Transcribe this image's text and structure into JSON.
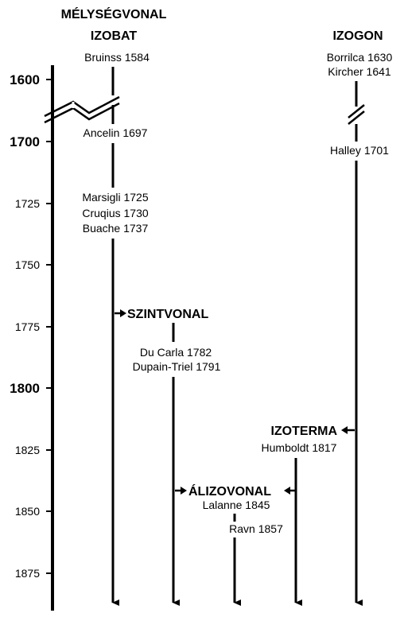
{
  "diagram": {
    "header_depth_line": "MÉLYSÉGVONAL",
    "header_izobat": "IZOBAT",
    "header_izogon": "IZOGON",
    "header_szintvonal": "SZINTVONAL",
    "header_izoterma": "IZOTERMA",
    "header_alizovonal": "ÁLIZOVONAL",
    "years_major": [
      "1600",
      "1700",
      "1800"
    ],
    "years_minor": [
      "1725",
      "1750",
      "1775",
      "1825",
      "1850",
      "1875"
    ],
    "events": {
      "bruinss": "Bruinss 1584",
      "ancelin": "Ancelin 1697",
      "marsigli": "Marsigli 1725",
      "cruqius": "Cruqius 1730",
      "buache": "Buache 1737",
      "borrilca": "Borrilca 1630",
      "kircher": "Kircher 1641",
      "halley": "Halley 1701",
      "ducarla": "Du Carla 1782",
      "dupain": "Dupain-Triel 1791",
      "humboldt": "Humboldt 1817",
      "lalanne": "Lalanne 1845",
      "ravn": "Ravn 1857"
    }
  }
}
